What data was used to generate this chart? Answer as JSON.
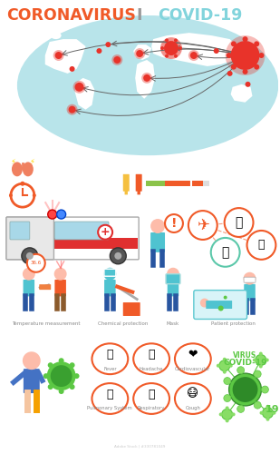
{
  "title1": "CORONAVIRUS",
  "title_sep": " I ",
  "title2": "COVID-19",
  "title1_color": "#F05A28",
  "title2_color": "#82D4DC",
  "sep_color": "#999999",
  "bg_color": "#FFFFFF",
  "map_bg": "#B8E4EA",
  "map_continent": "#7CC8D0",
  "dot_red": "#E8332A",
  "dot_orange": "#F05A28",
  "arrow_color": "#555555",
  "lung_color": "#F08060",
  "clock_color": "#F05A28",
  "therm_yellow": "#F0C040",
  "therm_orange": "#F05A28",
  "bar_green": "#8BC34A",
  "bar_orange": "#F05A28",
  "amb_white": "#FFFFFF",
  "amb_gray": "#CCCCCC",
  "amb_red": "#E03030",
  "amb_lightblue": "#A8D8E8",
  "person_skin": "#FDBCAA",
  "person_blue": "#4FC3D0",
  "person_navy": "#2855A0",
  "person_orange": "#F05A28",
  "person_brown": "#8B5A2B",
  "hazmat_teal": "#4FC3D0",
  "icon_orange": "#F05A28",
  "icon_green": "#5CC8AA",
  "virus_green": "#5CC844",
  "label_color": "#888888",
  "label_temp": "Temperature measurement",
  "label_chem": "Chemical protection",
  "label_mask": "Mask",
  "label_patient": "Patient protection",
  "sym_labels": [
    "Fever",
    "Headache",
    "Cardiovascular",
    "Pulmonary System",
    "Respiratory",
    "Cough"
  ],
  "covid_green": "#5CC844"
}
